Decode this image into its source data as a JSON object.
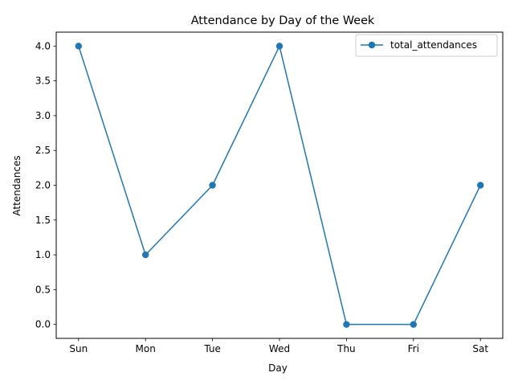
{
  "chart_data": {
    "type": "line",
    "title": "Attendance by Day of the Week",
    "xlabel": "Day",
    "ylabel": "Attendances",
    "categories": [
      "Sun",
      "Mon",
      "Tue",
      "Wed",
      "Thu",
      "Fri",
      "Sat"
    ],
    "series": [
      {
        "name": "total_attendances",
        "values": [
          4,
          1,
          2,
          4,
          0,
          0,
          2
        ],
        "color": "#1f77b4",
        "marker": "circle"
      }
    ],
    "ylim": [
      -0.2,
      4.2
    ],
    "yticks": [
      "0.0",
      "0.5",
      "1.0",
      "1.5",
      "2.0",
      "2.5",
      "3.0",
      "3.5",
      "4.0"
    ],
    "grid": false,
    "legend_position": "top-right"
  }
}
